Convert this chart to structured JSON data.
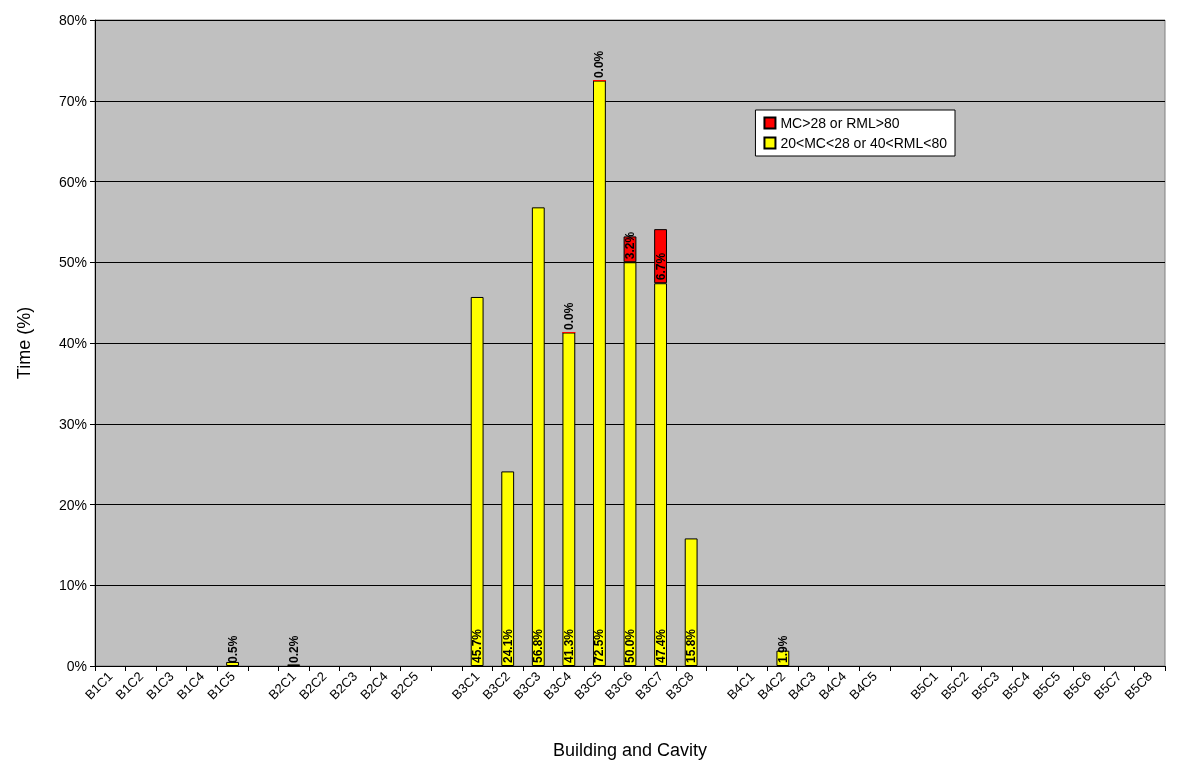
{
  "chart_data": {
    "type": "bar",
    "xlabel": "Building and Cavity",
    "ylabel": "Time (%)",
    "categories": [
      "B1C1",
      "B1C2",
      "B1C3",
      "B1C4",
      "B1C5",
      null,
      "B2C1",
      "B2C2",
      "B2C3",
      "B2C4",
      "B2C5",
      null,
      "B3C1",
      "B3C2",
      "B3C3",
      "B3C4",
      "B3C5",
      "B3C6",
      "B3C7",
      "B3C8",
      null,
      "B4C1",
      "B4C2",
      "B4C3",
      "B4C4",
      "B4C5",
      null,
      "B5C1",
      "B5C2",
      "B5C3",
      "B5C4",
      "B5C5",
      "B5C6",
      "B5C7",
      "B5C8"
    ],
    "stacked": true,
    "series": [
      {
        "name": "20<MC<28 or 40<RML<80",
        "color": "#ffff00",
        "values": [
          null,
          null,
          null,
          null,
          0.5,
          null,
          0.2,
          null,
          null,
          null,
          null,
          null,
          45.7,
          24.1,
          56.8,
          41.3,
          72.5,
          50.0,
          47.4,
          15.8,
          null,
          null,
          1.9,
          null,
          null,
          null,
          null,
          null,
          null,
          null,
          null,
          null,
          null,
          null,
          null
        ],
        "value_labels": [
          null,
          null,
          null,
          null,
          "0.5%",
          null,
          "0.2%",
          null,
          null,
          null,
          null,
          null,
          "45.7%",
          "24.1%",
          "56.8%",
          "41.3%",
          "72.5%",
          "50.0%",
          "47.4%",
          "15.8%",
          null,
          null,
          "1.9%",
          null,
          null,
          null,
          null,
          null,
          null,
          null,
          null,
          null,
          null,
          null,
          null
        ]
      },
      {
        "name": "MC>28 or RML>80",
        "color": "#ff0000",
        "values": [
          null,
          null,
          null,
          null,
          null,
          null,
          null,
          null,
          null,
          null,
          null,
          null,
          null,
          null,
          null,
          0,
          0,
          3.2,
          6.7,
          null,
          null,
          null,
          null,
          null,
          null,
          null,
          null,
          null,
          null,
          null,
          null,
          null,
          null,
          null,
          null
        ],
        "value_labels": [
          null,
          null,
          null,
          null,
          null,
          null,
          null,
          null,
          null,
          null,
          null,
          null,
          null,
          null,
          null,
          "0.0%",
          "0.0%",
          "3.2%",
          "6.7%",
          null,
          null,
          null,
          null,
          null,
          null,
          null,
          null,
          null,
          null,
          null,
          null,
          null,
          null,
          null,
          null
        ]
      }
    ],
    "ylim": [
      0,
      80
    ],
    "yticks": [
      {
        "value": 0,
        "label": "0%"
      },
      {
        "value": 10,
        "label": "10%"
      },
      {
        "value": 20,
        "label": "20%"
      },
      {
        "value": 30,
        "label": "30%"
      },
      {
        "value": 40,
        "label": "40%"
      },
      {
        "value": 50,
        "label": "50%"
      },
      {
        "value": 60,
        "label": "60%"
      },
      {
        "value": 70,
        "label": "70%"
      },
      {
        "value": 80,
        "label": "80%"
      }
    ],
    "grid": "y",
    "legend": "top right"
  }
}
